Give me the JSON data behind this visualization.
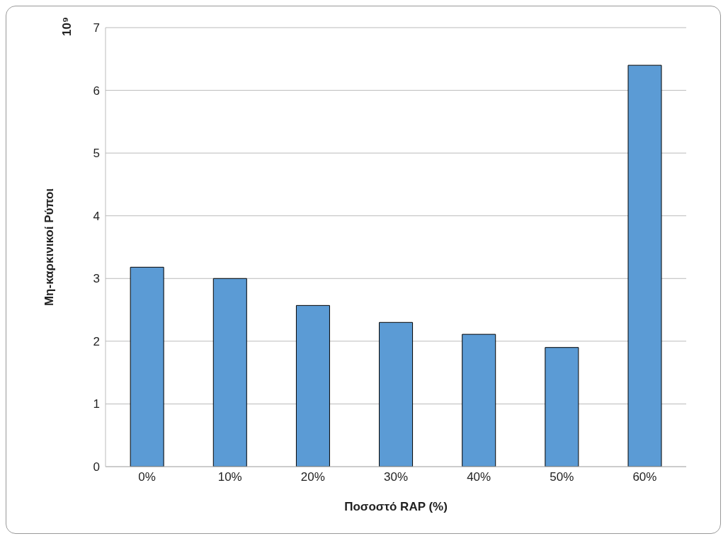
{
  "chart_data": {
    "type": "bar",
    "xlabel": "Ποσοστό RAP (%)",
    "ylabel": "Μη-καρκινικοί Ρύποι",
    "annotations": [
      "10⁹"
    ],
    "categories": [
      "0%",
      "10%",
      "20%",
      "30%",
      "40%",
      "50%",
      "60%"
    ],
    "values": [
      3.18,
      3.0,
      2.57,
      2.3,
      2.11,
      1.9,
      6.4
    ],
    "color": "#5b9bd5",
    "ylim": [
      0,
      7
    ],
    "yticks": [
      0,
      1,
      2,
      3,
      4,
      5,
      6,
      7
    ],
    "grid": "y",
    "legend": false
  }
}
